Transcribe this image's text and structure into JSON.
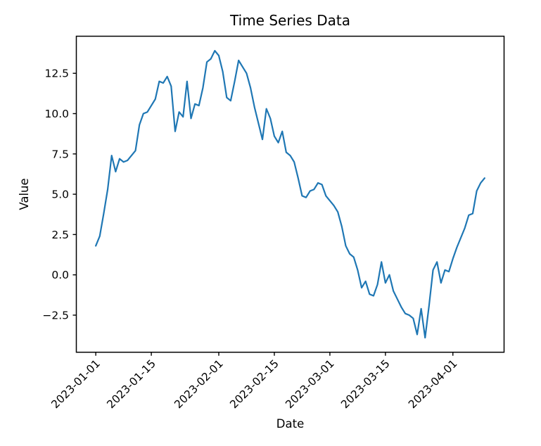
{
  "chart_data": {
    "type": "line",
    "title": "Time Series Data",
    "xlabel": "Date",
    "ylabel": "Value",
    "grid": false,
    "legend": null,
    "line_color": "#1f77b4",
    "axis_color": "#000000",
    "background_color": "#ffffff",
    "x_tick_labels": [
      "2023-01-01",
      "2023-01-15",
      "2023-02-01",
      "2023-02-15",
      "2023-03-01",
      "2023-03-15",
      "2023-04-01"
    ],
    "x_tick_positions_days": [
      0,
      14,
      31,
      45,
      59,
      73,
      90
    ],
    "x_tick_rotation_deg": 45,
    "y_tick_labels": [
      "−2.5",
      "0.0",
      "2.5",
      "5.0",
      "7.5",
      "10.0",
      "12.5"
    ],
    "y_tick_values": [
      -2.5,
      0.0,
      2.5,
      5.0,
      7.5,
      10.0,
      12.5
    ],
    "xlim_days": [
      -4.9,
      102.9
    ],
    "ylim": [
      -4.8,
      14.8
    ],
    "series": [
      {
        "name": "Value",
        "start_date": "2023-01-01",
        "frequency": "daily",
        "values": [
          1.8,
          2.4,
          3.8,
          5.3,
          7.4,
          6.4,
          7.2,
          7.0,
          7.1,
          7.4,
          7.7,
          9.3,
          10.0,
          10.1,
          10.5,
          10.9,
          12.0,
          11.9,
          12.3,
          11.7,
          8.9,
          10.1,
          9.8,
          12.0,
          9.7,
          10.6,
          10.5,
          11.6,
          13.2,
          13.4,
          13.9,
          13.6,
          12.6,
          11.0,
          10.8,
          12.0,
          13.3,
          12.9,
          12.5,
          11.6,
          10.4,
          9.4,
          8.4,
          10.3,
          9.7,
          8.6,
          8.2,
          8.9,
          7.6,
          7.4,
          7.0,
          6.0,
          4.9,
          4.8,
          5.2,
          5.3,
          5.7,
          5.6,
          4.9,
          4.6,
          4.3,
          3.9,
          3.0,
          1.8,
          1.3,
          1.1,
          0.3,
          -0.8,
          -0.4,
          -1.2,
          -1.3,
          -0.6,
          0.8,
          -0.5,
          0.0,
          -1.0,
          -1.5,
          -2.0,
          -2.4,
          -2.5,
          -2.7,
          -3.7,
          -2.1,
          -3.9,
          -1.9,
          0.3,
          0.8,
          -0.5,
          0.3,
          0.2,
          1.0,
          1.7,
          2.3,
          2.9,
          3.7,
          3.8,
          5.2,
          5.7,
          6.0
        ]
      }
    ]
  }
}
